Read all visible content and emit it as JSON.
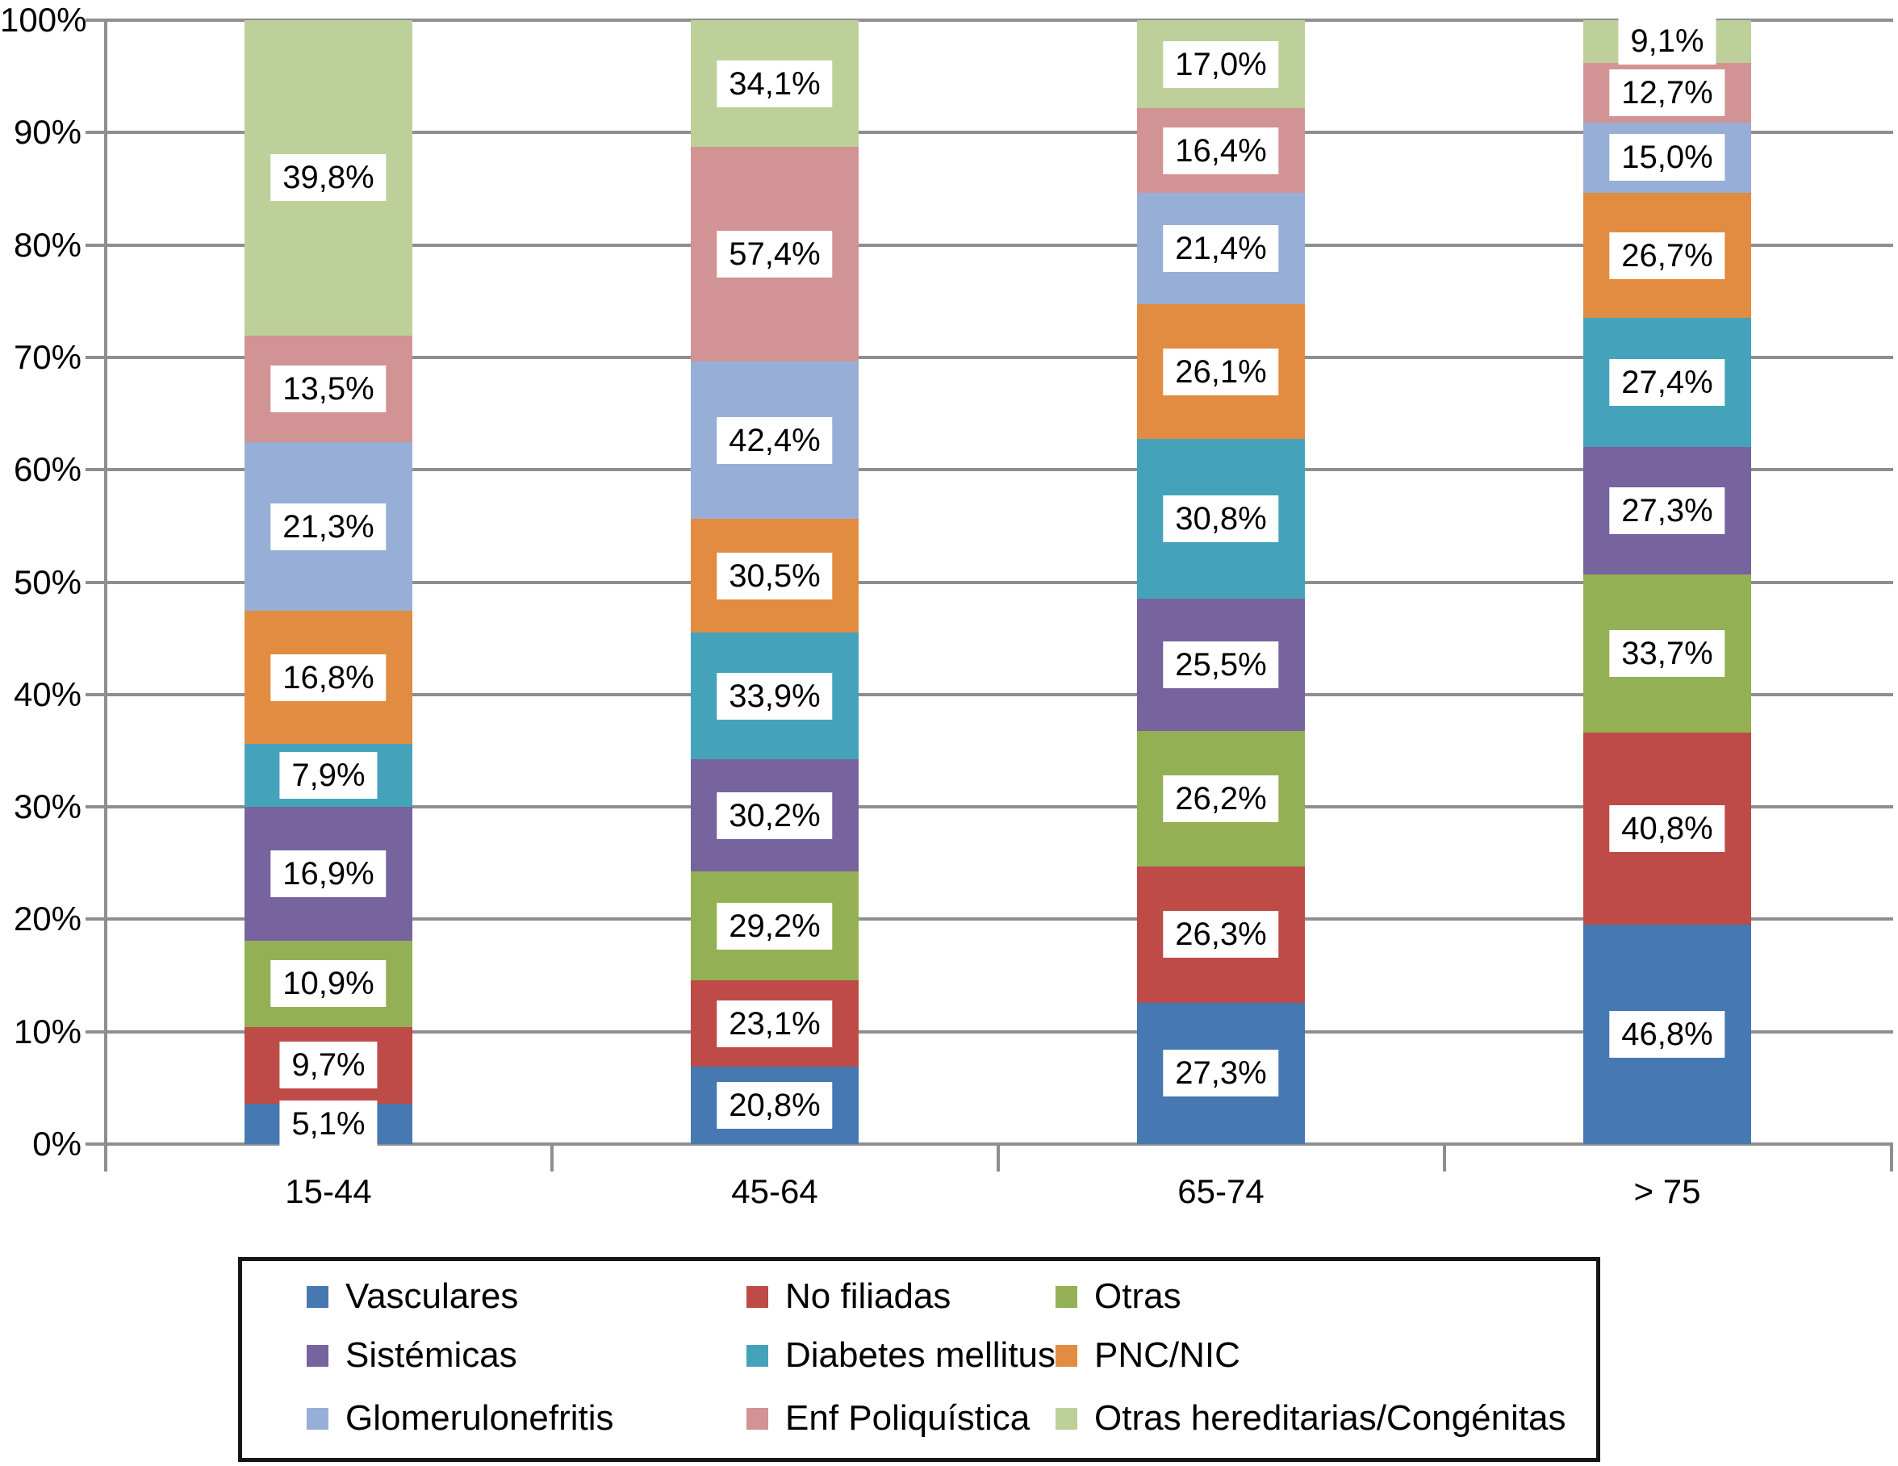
{
  "chart_data": {
    "type": "bar",
    "stacked": true,
    "normalized": "each column is rescaled so the stack totals 100%; printed labels are the raw per-series percentages (each series sums to 100% across the four age groups)",
    "title": "",
    "xlabel": "",
    "ylabel": "",
    "categories": [
      "15-44",
      "45-64",
      "65-74",
      "> 75"
    ],
    "series": [
      {
        "name": "Vasculares",
        "color": "#4678B2",
        "values": [
          5.1,
          20.8,
          27.3,
          46.8
        ],
        "labels": [
          "5,1%",
          "20,8%",
          "27,3%",
          "46,8%"
        ]
      },
      {
        "name": "No filiadas",
        "color": "#BE4B47",
        "values": [
          9.7,
          23.1,
          26.3,
          40.8
        ],
        "labels": [
          "9,7%",
          "23,1%",
          "26,3%",
          "40,8%"
        ]
      },
      {
        "name": "Otras",
        "color": "#94B054",
        "values": [
          10.9,
          29.2,
          26.2,
          33.7
        ],
        "labels": [
          "10,9%",
          "29,2%",
          "26,2%",
          "33,7%"
        ]
      },
      {
        "name": "Sistémicas",
        "color": "#77639E",
        "values": [
          16.9,
          30.2,
          25.5,
          27.3
        ],
        "labels": [
          "16,9%",
          "30,2%",
          "25,5%",
          "27,3%"
        ]
      },
      {
        "name": "Diabetes mellitus",
        "color": "#44A3BB",
        "values": [
          7.9,
          33.9,
          30.8,
          27.4
        ],
        "labels": [
          "7,9%",
          "33,9%",
          "30,8%",
          "27,4%"
        ]
      },
      {
        "name": "PNC/NIC",
        "color": "#E28C41",
        "values": [
          16.8,
          30.5,
          26.1,
          26.7
        ],
        "labels": [
          "16,8%",
          "30,5%",
          "26,1%",
          "26,7%"
        ]
      },
      {
        "name": "Glomerulonefritis",
        "color": "#97AFD7",
        "values": [
          21.3,
          42.4,
          21.4,
          15.0
        ],
        "labels": [
          "21,3%",
          "42,4%",
          "21,4%",
          "15,0%"
        ]
      },
      {
        "name": "Enf Poliquística",
        "color": "#D29394",
        "values": [
          13.5,
          57.4,
          16.4,
          12.7
        ],
        "labels": [
          "13,5%",
          "57,4%",
          "16,4%",
          "12,7%"
        ]
      },
      {
        "name": "Otras hereditarias/Congénitas",
        "color": "#BDD09A",
        "values": [
          39.8,
          34.1,
          17.0,
          9.1
        ],
        "labels": [
          "39,8%",
          "34,1%",
          "17,0%",
          "9,1%"
        ]
      }
    ],
    "y_axis": {
      "min": 0,
      "max": 100,
      "ticks": [
        "0%",
        "10%",
        "20%",
        "30%",
        "40%",
        "50%",
        "60%",
        "70%",
        "80%",
        "90%",
        "100%"
      ]
    },
    "grid": "horizontal gridlines on",
    "legend": {
      "position": "bottom",
      "columns": 3,
      "border": "black"
    },
    "style": {
      "gridline_color": "#8e8e8e",
      "label_box_color": "#ffffff",
      "text_color": "#000000"
    }
  }
}
